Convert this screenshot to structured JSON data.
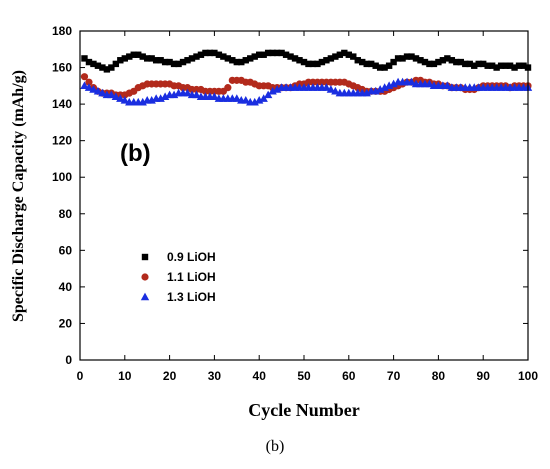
{
  "chart_data": {
    "type": "scatter",
    "panel_label": "(b)",
    "caption": "(b)",
    "xlabel": "Cycle Number",
    "ylabel": "Specific Discharge Capacity (mAh/g)",
    "xlim": [
      0,
      100
    ],
    "ylim": [
      0,
      180
    ],
    "xticks": [
      0,
      10,
      20,
      30,
      40,
      50,
      60,
      70,
      80,
      90,
      100
    ],
    "yticks": [
      0,
      20,
      40,
      60,
      80,
      100,
      120,
      140,
      160,
      180
    ],
    "grid": false,
    "legend_position": "lower-left",
    "series": [
      {
        "name": "0.9 LiOH",
        "color": "#000000",
        "marker": "square",
        "x": [
          1,
          2,
          3,
          4,
          5,
          6,
          7,
          8,
          9,
          10,
          11,
          12,
          13,
          14,
          15,
          16,
          17,
          18,
          19,
          20,
          21,
          22,
          23,
          24,
          25,
          26,
          27,
          28,
          29,
          30,
          31,
          32,
          33,
          34,
          35,
          36,
          37,
          38,
          39,
          40,
          41,
          42,
          43,
          44,
          45,
          46,
          47,
          48,
          49,
          50,
          51,
          52,
          53,
          54,
          55,
          56,
          57,
          58,
          59,
          60,
          61,
          62,
          63,
          64,
          65,
          66,
          67,
          68,
          69,
          70,
          71,
          72,
          73,
          74,
          75,
          76,
          77,
          78,
          79,
          80,
          81,
          82,
          83,
          84,
          85,
          86,
          87,
          88,
          89,
          90,
          91,
          92,
          93,
          94,
          95,
          96,
          97,
          98,
          99,
          100
        ],
        "values": [
          165,
          163,
          162,
          161,
          160,
          159,
          160,
          162,
          164,
          165,
          166,
          167,
          167,
          166,
          165,
          165,
          164,
          164,
          163,
          163,
          162,
          162,
          163,
          164,
          165,
          166,
          167,
          168,
          168,
          168,
          167,
          166,
          165,
          164,
          163,
          163,
          164,
          165,
          166,
          167,
          167,
          168,
          168,
          168,
          168,
          167,
          166,
          165,
          164,
          163,
          162,
          162,
          162,
          163,
          164,
          165,
          166,
          167,
          168,
          167,
          166,
          164,
          163,
          162,
          162,
          161,
          160,
          160,
          161,
          163,
          165,
          165,
          166,
          166,
          165,
          164,
          163,
          162,
          162,
          163,
          164,
          165,
          164,
          163,
          163,
          162,
          162,
          161,
          162,
          162,
          161,
          161,
          160,
          161,
          161,
          161,
          160,
          161,
          161,
          160
        ]
      },
      {
        "name": "1.1 LiOH",
        "color": "#b22a1c",
        "marker": "circle",
        "x": [
          1,
          2,
          3,
          4,
          5,
          6,
          7,
          8,
          9,
          10,
          11,
          12,
          13,
          14,
          15,
          16,
          17,
          18,
          19,
          20,
          21,
          22,
          23,
          24,
          25,
          26,
          27,
          28,
          29,
          30,
          31,
          32,
          33,
          34,
          35,
          36,
          37,
          38,
          39,
          40,
          41,
          42,
          43,
          44,
          45,
          46,
          47,
          48,
          49,
          50,
          51,
          52,
          53,
          54,
          55,
          56,
          57,
          58,
          59,
          60,
          61,
          62,
          63,
          64,
          65,
          66,
          67,
          68,
          69,
          70,
          71,
          72,
          73,
          74,
          75,
          76,
          77,
          78,
          79,
          80,
          81,
          82,
          83,
          84,
          85,
          86,
          87,
          88,
          89,
          90,
          91,
          92,
          93,
          94,
          95,
          96,
          97,
          98,
          99,
          100
        ],
        "values": [
          155,
          152,
          149,
          147,
          146,
          146,
          146,
          145,
          145,
          145,
          146,
          147,
          149,
          150,
          151,
          151,
          151,
          151,
          151,
          151,
          150,
          150,
          149,
          149,
          148,
          148,
          148,
          147,
          147,
          147,
          147,
          147,
          149,
          153,
          153,
          153,
          152,
          152,
          151,
          150,
          150,
          150,
          149,
          149,
          149,
          149,
          149,
          150,
          151,
          151,
          152,
          152,
          152,
          152,
          152,
          152,
          152,
          152,
          152,
          151,
          150,
          149,
          148,
          147,
          147,
          147,
          147,
          147,
          148,
          149,
          150,
          151,
          152,
          152,
          153,
          153,
          152,
          152,
          151,
          151,
          150,
          150,
          149,
          149,
          149,
          148,
          148,
          148,
          149,
          150,
          150,
          150,
          150,
          150,
          150,
          149,
          150,
          150,
          150,
          150
        ]
      },
      {
        "name": "1.3 LiOH",
        "color": "#1a2ee0",
        "marker": "triangle",
        "x": [
          1,
          2,
          3,
          4,
          5,
          6,
          7,
          8,
          9,
          10,
          11,
          12,
          13,
          14,
          15,
          16,
          17,
          18,
          19,
          20,
          21,
          22,
          23,
          24,
          25,
          26,
          27,
          28,
          29,
          30,
          31,
          32,
          33,
          34,
          35,
          36,
          37,
          38,
          39,
          40,
          41,
          42,
          43,
          44,
          45,
          46,
          47,
          48,
          49,
          50,
          51,
          52,
          53,
          54,
          55,
          56,
          57,
          58,
          59,
          60,
          61,
          62,
          63,
          64,
          65,
          66,
          67,
          68,
          69,
          70,
          71,
          72,
          73,
          74,
          75,
          76,
          77,
          78,
          79,
          80,
          81,
          82,
          83,
          84,
          85,
          86,
          87,
          88,
          89,
          90,
          91,
          92,
          93,
          94,
          95,
          96,
          97,
          98,
          99,
          100
        ],
        "values": [
          150,
          149,
          148,
          147,
          146,
          145,
          145,
          144,
          143,
          142,
          141,
          141,
          141,
          141,
          142,
          142,
          143,
          143,
          144,
          145,
          145,
          146,
          146,
          146,
          145,
          145,
          144,
          144,
          144,
          144,
          143,
          143,
          143,
          143,
          143,
          142,
          142,
          141,
          141,
          142,
          143,
          145,
          147,
          148,
          149,
          149,
          149,
          149,
          149,
          149,
          149,
          149,
          149,
          149,
          149,
          148,
          147,
          146,
          146,
          146,
          146,
          146,
          146,
          146,
          147,
          147,
          148,
          149,
          150,
          151,
          152,
          152,
          152,
          152,
          151,
          151,
          151,
          151,
          150,
          150,
          150,
          150,
          149,
          149,
          149,
          149,
          149,
          149,
          149,
          149,
          149,
          149,
          149,
          149,
          149,
          149,
          149,
          149,
          149,
          149
        ]
      }
    ]
  }
}
